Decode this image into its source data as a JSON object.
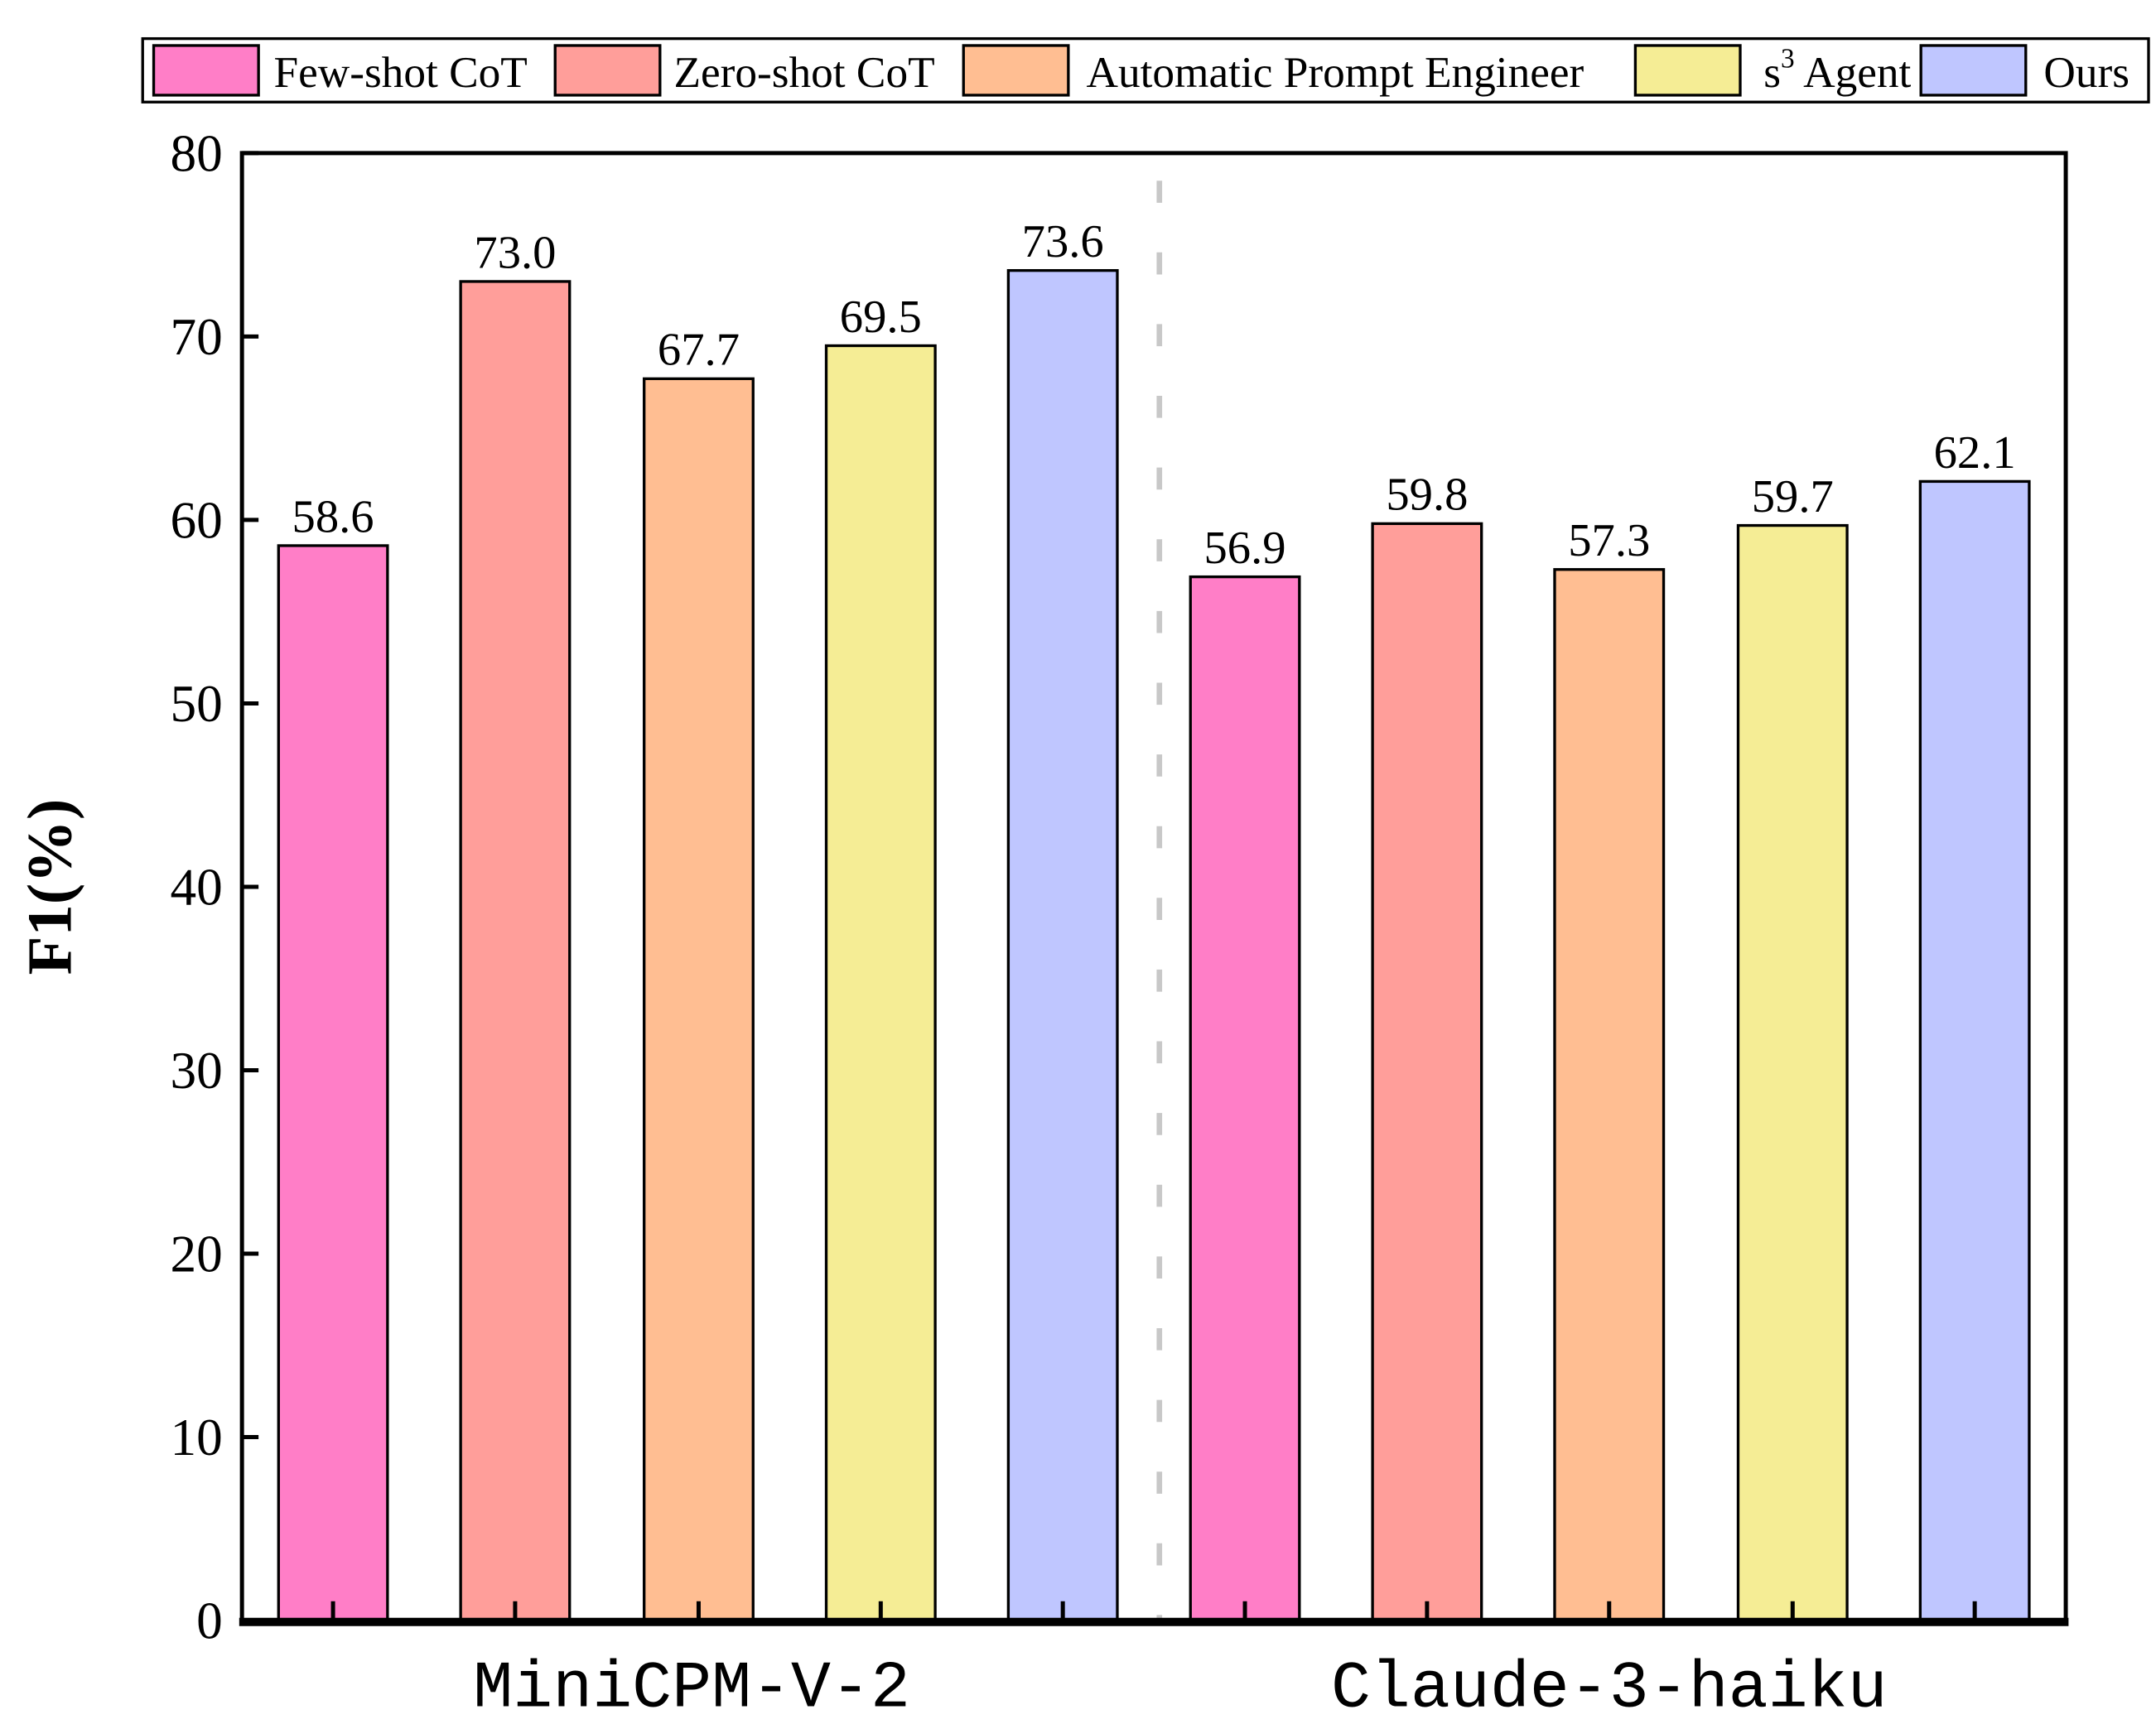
{
  "chart_data": {
    "type": "bar",
    "title": "",
    "xlabel": "",
    "ylabel": "F1(%)",
    "ylim": [
      0,
      80
    ],
    "yticks": [
      0,
      10,
      20,
      30,
      40,
      50,
      60,
      70,
      80
    ],
    "grid": false,
    "legend_position": "top",
    "categories": [
      "MiniCPM-V-2",
      "Claude-3-haiku"
    ],
    "series": [
      {
        "name": "Few-shot CoT",
        "color": "#FF7EC7",
        "values": [
          58.6,
          56.9
        ],
        "labels": [
          "58.6",
          "56.9"
        ]
      },
      {
        "name": "Zero-shot CoT",
        "color": "#FF9E9A",
        "values": [
          73.0,
          59.8
        ],
        "labels": [
          "73.0",
          "59.8"
        ]
      },
      {
        "name": "Automatic Prompt Engineer",
        "color": "#FFBE92",
        "values": [
          67.7,
          57.3
        ],
        "labels": [
          "67.7",
          "57.3"
        ]
      },
      {
        "name": "s3 Agent",
        "name_base": "s",
        "name_sup": "3",
        "name_rest": " Agent",
        "color": "#F5ED95",
        "values": [
          69.5,
          59.7
        ],
        "labels": [
          "69.5",
          "59.7"
        ]
      },
      {
        "name": "Ours",
        "color": "#BFC6FF",
        "values": [
          73.6,
          62.1
        ],
        "labels": [
          "73.6",
          "62.1"
        ]
      }
    ]
  }
}
